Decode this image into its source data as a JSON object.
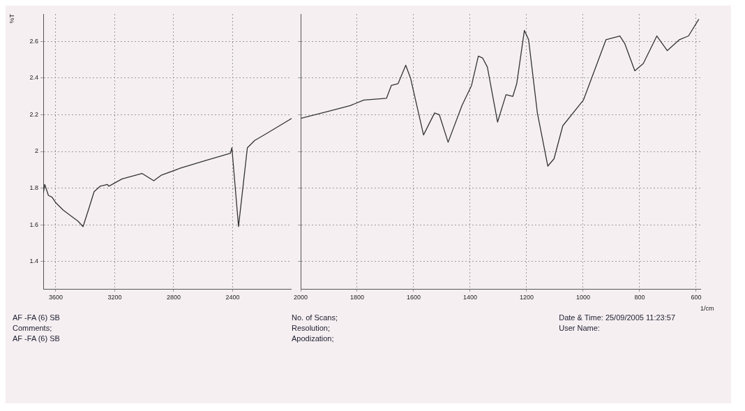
{
  "chart_data": [
    {
      "type": "line",
      "ylabel": "%T",
      "xlim": [
        3685,
        2000
      ],
      "xticks": [
        3600,
        3200,
        2800,
        2400
      ],
      "ylim": [
        1.25,
        2.75
      ],
      "yticks": [
        1.4,
        1.6,
        1.8,
        2,
        2.2,
        2.4,
        2.6
      ],
      "grid": true,
      "legend": false,
      "marker": "none",
      "line_style": "solid",
      "x": [
        3685,
        3675,
        3650,
        3625,
        3600,
        3550,
        3500,
        3450,
        3415,
        3375,
        3340,
        3300,
        3250,
        3240,
        3150,
        3015,
        2935,
        2885,
        2750,
        2585,
        2415,
        2405,
        2360,
        2300,
        2250,
        2165,
        2000
      ],
      "series": [
        {
          "color": "#333333",
          "values": [
            1.77,
            1.82,
            1.76,
            1.75,
            1.72,
            1.68,
            1.65,
            1.62,
            1.59,
            1.69,
            1.78,
            1.81,
            1.82,
            1.81,
            1.85,
            1.88,
            1.84,
            1.87,
            1.91,
            1.95,
            1.99,
            2.02,
            1.59,
            2.02,
            2.06,
            2.1,
            2.18
          ]
        }
      ],
      "annotations": [
        "AF -FA (6) SB",
        "Comments;",
        "AF -FA (6) SB"
      ]
    },
    {
      "type": "line",
      "xlabel": "1/cm",
      "xlim": [
        2000,
        585
      ],
      "xticks": [
        2000,
        1800,
        1600,
        1400,
        1200,
        1000,
        800,
        600
      ],
      "ylim": [
        1.25,
        2.75
      ],
      "yticks": [
        1.4,
        1.6,
        1.8,
        2,
        2.2,
        2.4,
        2.6
      ],
      "grid": true,
      "legend": false,
      "marker": "none",
      "line_style": "solid",
      "tick_labels": "x",
      "x": [
        2000,
        1898,
        1825,
        1776,
        1696,
        1679,
        1655,
        1628,
        1611,
        1565,
        1526,
        1509,
        1478,
        1429,
        1395,
        1371,
        1356,
        1339,
        1303,
        1273,
        1249,
        1235,
        1208,
        1193,
        1162,
        1125,
        1103,
        1072,
        999,
        919,
        870,
        853,
        817,
        787,
        739,
        702,
        659,
        627,
        591
      ],
      "series": [
        {
          "color": "#333333",
          "values": [
            2.18,
            2.22,
            2.25,
            2.28,
            2.29,
            2.36,
            2.37,
            2.47,
            2.4,
            2.09,
            2.21,
            2.2,
            2.05,
            2.25,
            2.36,
            2.52,
            2.51,
            2.46,
            2.16,
            2.31,
            2.3,
            2.37,
            2.66,
            2.61,
            2.21,
            1.92,
            1.96,
            2.14,
            2.28,
            2.61,
            2.63,
            2.59,
            2.44,
            2.48,
            2.63,
            2.55,
            2.61,
            2.63,
            2.72
          ]
        }
      ],
      "annotations": [
        "No. of Scans;",
        "Resolution;",
        "Apodization;",
        "Date & Time: 25/09/2005 11:23:57",
        "User Name:"
      ]
    }
  ]
}
